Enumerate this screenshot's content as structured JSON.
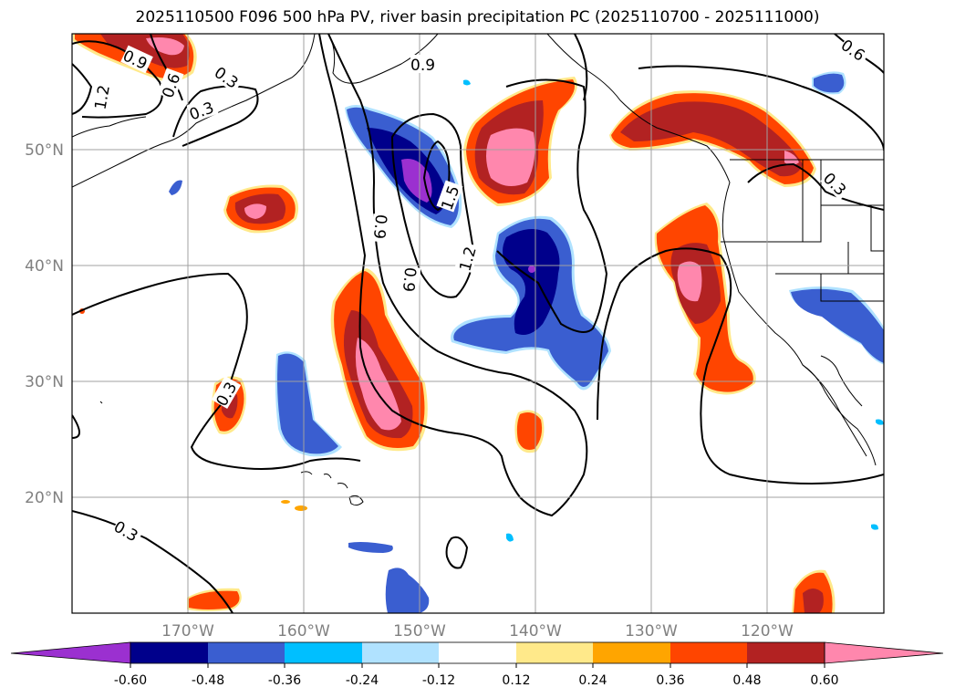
{
  "title": "2025110500 F096 500 hPa PV, river basin precipitation PC (2025110700 - 2025111000)",
  "map": {
    "extent": {
      "lon_min": -180,
      "lon_max": -110,
      "lat_min": 10,
      "lat_max": 60
    },
    "lat_ticks": [
      {
        "value": 20,
        "label": "20°N"
      },
      {
        "value": 30,
        "label": "30°N"
      },
      {
        "value": 40,
        "label": "40°N"
      },
      {
        "value": 50,
        "label": "50°N"
      }
    ],
    "lon_ticks": [
      {
        "value": -170,
        "label": "170°W"
      },
      {
        "value": -160,
        "label": "160°W"
      },
      {
        "value": -150,
        "label": "150°W"
      },
      {
        "value": -140,
        "label": "140°W"
      },
      {
        "value": -130,
        "label": "130°W"
      },
      {
        "value": -120,
        "label": "120°W"
      }
    ],
    "contour_labels": [
      "0.9",
      "0.6",
      "0.3",
      "1.2",
      "0.3",
      "0.9",
      "0.9",
      "0.9",
      "1.5",
      "1.2",
      "0.3",
      "0.3",
      "0.3",
      "0.6"
    ]
  },
  "colorbar": {
    "colors": [
      "#9b30d0",
      "#00008b",
      "#3a5ed0",
      "#00bfff",
      "#b0e2ff",
      "#ffffff",
      "#ffe98a",
      "#ffa500",
      "#ff4500",
      "#b22222",
      "#ff87ad"
    ],
    "labels": [
      "-0.60",
      "-0.48",
      "-0.36",
      "-0.24",
      "-0.12",
      "0.12",
      "0.24",
      "0.36",
      "0.48",
      "0.60"
    ]
  }
}
